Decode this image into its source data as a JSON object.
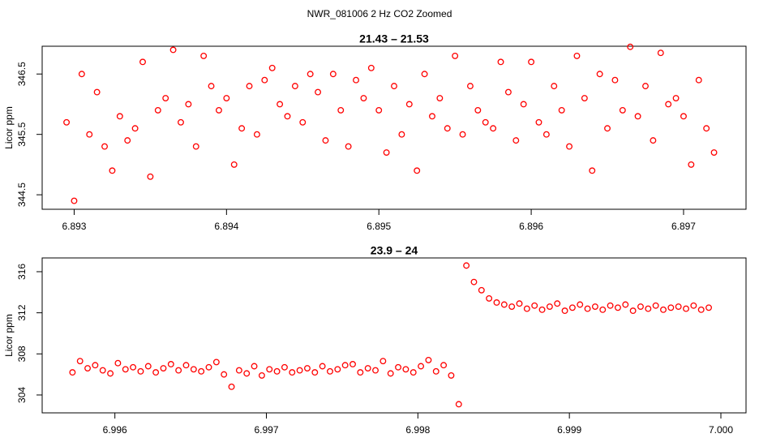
{
  "title": "NWR_081006  2 Hz CO2 Zoomed",
  "chart_data": [
    {
      "type": "scatter",
      "title": "21.43 – 21.53",
      "y_label": "Licor ppm",
      "color": "#ff0000",
      "x": [
        6.89295,
        6.893,
        6.89305,
        6.8931,
        6.89315,
        6.8932,
        6.89325,
        6.8933,
        6.89335,
        6.8934,
        6.89345,
        6.8935,
        6.89355,
        6.8936,
        6.89365,
        6.8937,
        6.89375,
        6.8938,
        6.89385,
        6.8939,
        6.89395,
        6.894,
        6.89405,
        6.8941,
        6.89415,
        6.8942,
        6.89425,
        6.8943,
        6.89435,
        6.8944,
        6.89445,
        6.8945,
        6.89455,
        6.8946,
        6.89465,
        6.8947,
        6.89475,
        6.8948,
        6.89485,
        6.8949,
        6.89495,
        6.895,
        6.89505,
        6.8951,
        6.89515,
        6.8952,
        6.89525,
        6.8953,
        6.89535,
        6.8954,
        6.89545,
        6.8955,
        6.89555,
        6.8956,
        6.89565,
        6.8957,
        6.89575,
        6.8958,
        6.89585,
        6.8959,
        6.89595,
        6.896,
        6.89605,
        6.8961,
        6.89615,
        6.8962,
        6.89625,
        6.8963,
        6.89635,
        6.8964,
        6.89645,
        6.8965,
        6.89655,
        6.8966,
        6.89665,
        6.8967,
        6.89675,
        6.8968,
        6.89685,
        6.8969,
        6.89695,
        6.897,
        6.89705,
        6.8971,
        6.89715,
        6.8972
      ],
      "values": [
        345.7,
        344.4,
        346.5,
        345.5,
        346.2,
        345.3,
        344.9,
        345.8,
        345.4,
        345.6,
        346.7,
        344.8,
        345.9,
        346.1,
        346.9,
        345.7,
        346.0,
        345.3,
        346.8,
        346.3,
        345.9,
        346.1,
        345.0,
        345.6,
        346.3,
        345.5,
        346.4,
        346.6,
        346.0,
        345.8,
        346.3,
        345.7,
        346.5,
        346.2,
        345.4,
        346.5,
        345.9,
        345.3,
        346.4,
        346.1,
        346.6,
        345.9,
        345.2,
        346.3,
        345.5,
        346.0,
        344.9,
        346.5,
        345.8,
        346.1,
        345.6,
        346.8,
        345.5,
        346.3,
        345.9,
        345.7,
        345.6,
        346.7,
        346.2,
        345.4,
        346.0,
        346.7,
        345.7,
        345.5,
        346.3,
        345.9,
        345.3,
        346.8,
        346.1,
        344.9,
        346.5,
        345.6,
        346.4,
        345.9,
        346.95,
        345.8,
        346.3,
        345.4,
        346.85,
        346.0,
        346.1,
        345.8,
        345.0,
        346.4,
        345.6,
        345.2
      ],
      "xlim": [
        6.89279,
        6.89741
      ],
      "xticks": [
        6.893,
        6.894,
        6.895,
        6.896,
        6.897
      ],
      "ylim": [
        344.26,
        346.96
      ],
      "yticks": [
        344.5,
        345.5,
        346.5
      ]
    },
    {
      "type": "scatter",
      "title": "23.9 – 24",
      "y_label": "Licor ppm",
      "color": "#ff0000",
      "x": [
        6.99572,
        6.99577,
        6.99582,
        6.99587,
        6.99592,
        6.99597,
        6.99602,
        6.99607,
        6.99612,
        6.99617,
        6.99622,
        6.99627,
        6.99632,
        6.99637,
        6.99642,
        6.99647,
        6.99652,
        6.99657,
        6.99662,
        6.99667,
        6.99672,
        6.99677,
        6.99682,
        6.99687,
        6.99692,
        6.99697,
        6.99702,
        6.99707,
        6.99712,
        6.99717,
        6.99722,
        6.99727,
        6.99732,
        6.99737,
        6.99742,
        6.99747,
        6.99752,
        6.99757,
        6.99762,
        6.99767,
        6.99772,
        6.99777,
        6.99782,
        6.99787,
        6.99792,
        6.99797,
        6.99802,
        6.99807,
        6.99812,
        6.99817,
        6.99822,
        6.99827,
        6.99832,
        6.99837,
        6.99842,
        6.99847,
        6.99852,
        6.99857,
        6.99862,
        6.99867,
        6.99872,
        6.99877,
        6.99882,
        6.99887,
        6.99892,
        6.99897,
        6.99902,
        6.99907,
        6.99912,
        6.99917,
        6.99922,
        6.99927,
        6.99932,
        6.99937,
        6.99942,
        6.99947,
        6.99952,
        6.99957,
        6.99962,
        6.99967,
        6.99972,
        6.99977,
        6.99982,
        6.99987,
        6.99992
      ],
      "values": [
        306.2,
        307.3,
        306.6,
        306.9,
        306.4,
        306.1,
        307.1,
        306.5,
        306.7,
        306.3,
        306.8,
        306.2,
        306.6,
        307.0,
        306.4,
        306.9,
        306.5,
        306.3,
        306.7,
        307.2,
        306.0,
        304.8,
        306.4,
        306.1,
        306.8,
        305.9,
        306.5,
        306.3,
        306.7,
        306.2,
        306.4,
        306.6,
        306.2,
        306.8,
        306.3,
        306.5,
        306.9,
        307.0,
        306.2,
        306.6,
        306.4,
        307.3,
        306.1,
        306.7,
        306.5,
        306.2,
        306.8,
        307.4,
        306.3,
        306.9,
        305.9,
        303.1,
        316.6,
        315.0,
        314.2,
        313.4,
        313.0,
        312.8,
        312.6,
        312.9,
        312.4,
        312.7,
        312.3,
        312.6,
        312.9,
        312.2,
        312.5,
        312.8,
        312.4,
        312.6,
        312.3,
        312.7,
        312.5,
        312.8,
        312.2,
        312.6,
        312.4,
        312.7,
        312.3,
        312.5,
        312.6,
        312.4,
        312.7,
        312.3,
        312.5
      ],
      "xlim": [
        6.99552,
        7.000166
      ],
      "xticks": [
        6.996,
        6.997,
        6.998,
        6.999,
        {
          "value": 7,
          "label": "7.000"
        }
      ],
      "ylim": [
        302.26,
        317.34
      ],
      "yticks": [
        304,
        308,
        312,
        316
      ]
    }
  ]
}
